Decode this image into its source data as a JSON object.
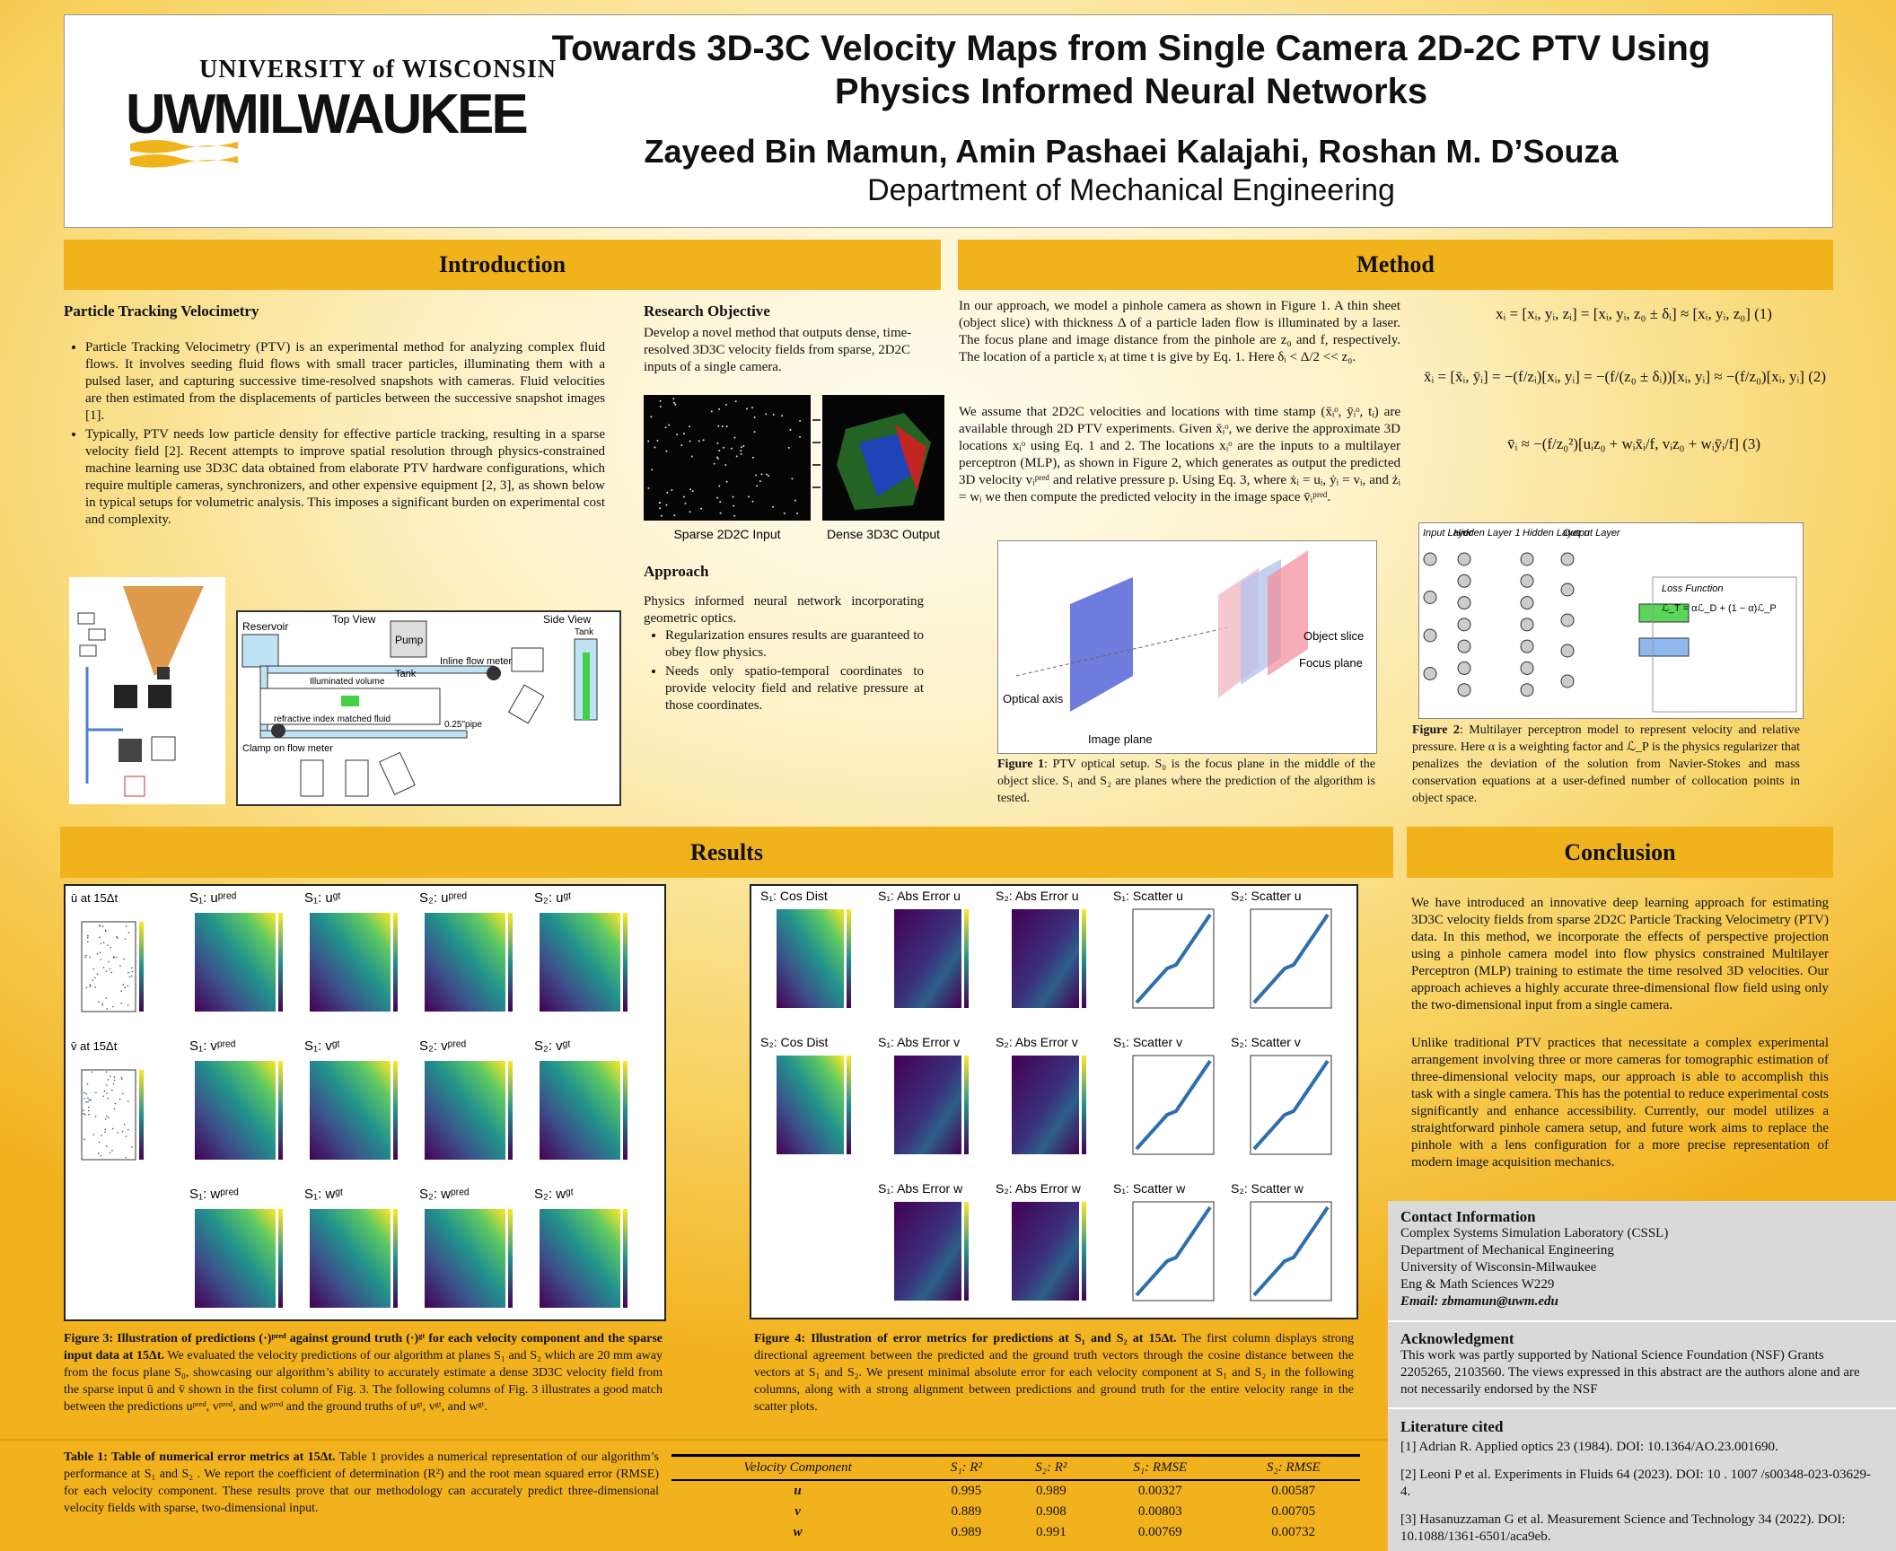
{
  "header": {
    "university": "UNIVERSITY of WISCONSIN",
    "logo": "UWMILWAUKEE",
    "title": "Towards 3D-3C Velocity Maps from Single Camera 2D-2C PTV Using Physics Informed Neural Networks",
    "authors": "Zayeed Bin Mamun, Amin Pashaei Kalajahi, Roshan M. D’Souza",
    "department": "Department of Mechanical Engineering"
  },
  "introduction": {
    "heading": "Introduction",
    "subheading": "Particle Tracking Velocimetry",
    "bullets": [
      "Particle Tracking Velocimetry (PTV) is an experimental method for analyzing complex fluid flows. It involves seeding fluid flows with small tracer particles, illuminating them with a pulsed laser, and capturing successive time-resolved snapshots with cameras. Fluid velocities are then estimated from the displacements of particles between the successive snapshot images [1].",
      "Typically, PTV needs low particle density for effective particle tracking, resulting in a sparse velocity field [2]. Recent attempts to improve spatial resolution through physics-constrained machine learning use 3D3C data obtained from elaborate PTV hardware configurations, which require multiple cameras, synchronizers, and other expensive equipment [2, 3], as shown below in typical setups for volumetric analysis. This imposes a significant burden on experimental cost and complexity."
    ],
    "objective_heading": "Research Objective",
    "objective": "Develop a novel method that outputs dense, time-resolved 3D3C velocity fields from sparse, 2D2C inputs of a single camera.",
    "figure_labels": [
      "Sparse 2D2C Input",
      "Dense 3D3C Output"
    ],
    "approach_heading": "Approach",
    "approach": "Physics informed neural network incorporating geometric optics.",
    "approach_bullets": [
      "Regularization ensures results are guaranteed to obey flow physics.",
      "Needs only spatio-temporal coordinates to provide velocity field and relative pressure at those coordinates."
    ],
    "setup_labels": [
      "Reservoir",
      "Top View",
      "Side View",
      "Pump",
      "Tank",
      "Inline flow meter",
      "Illuminated volume",
      "Clamp on flow meter",
      "refractive index matched fluid",
      "0.25\"pipe",
      "Tank"
    ]
  },
  "method": {
    "heading": "Method",
    "paragraphs": [
      "In our approach, we model a pinhole camera as shown in Figure 1. A thin sheet (object slice) with thickness Δ of a particle laden flow is illuminated by a laser. The focus plane and image distance from the pinhole are z₀ and f, respectively. The location of a particle xᵢ at time t is give by Eq. 1. Here δᵢ < Δ/2 << z₀.",
      "We assume that 2D2C velocities and locations with time stamp (x̄ᵢᵒ, ȳᵢᵒ, tᵢ) are available through 2D PTV experiments. Given x̄ᵢᵒ, we derive the approximate 3D locations xᵢᵒ using Eq. 1 and 2. The locations xᵢᵒ are the inputs to a multilayer perceptron (MLP), as shown in Figure 2, which generates as output the predicted 3D velocity vᵢᵖʳᵉᵈ and relative pressure p. Using Eq. 3, where ẋᵢ = uᵢ, ẏᵢ = vᵢ, and żᵢ = wᵢ we then compute the predicted velocity in the image space v̄ᵢᵖʳᵉᵈ."
    ],
    "equations": [
      "xᵢ = [xᵢ, yᵢ, zᵢ] = [xᵢ, yᵢ, z₀ ± δᵢ] ≈ [xᵢ, yᵢ, z₀] (1)",
      "x̄ᵢ = [x̄ᵢ, ȳᵢ] = −(f/zᵢ)[xᵢ, yᵢ] = −(f/(z₀ ± δᵢ))[xᵢ, yᵢ] ≈ −(f/z₀)[xᵢ, yᵢ] (2)",
      "v̄ᵢ ≈ −(f/z₀²)[uᵢz₀ + wᵢx̄ᵢ/f, vᵢz₀ + wᵢȳᵢ/f] (3)"
    ],
    "figure1_labels": [
      "Optical axis",
      "Image plane",
      "Object slice",
      "Focus plane"
    ],
    "figure1_caption_label": "Figure 1",
    "figure1_caption": ": PTV optical setup. S₀ is the focus plane in the middle of the object slice. S₁ and S₂ are planes where the prediction of the algorithm is tested.",
    "figure2_labels": [
      "Input Layer",
      "Hidden Layer 1",
      "Hidden Layer n",
      "Output Layer",
      "Loss Function",
      "ℒ_T = αℒ_D + (1 − α)ℒ_P"
    ],
    "figure2_caption_label": "Figure 2",
    "figure2_caption": ": Multilayer perceptron model to represent velocity and relative pressure. Here α is a weighting factor and ℒ_P is the physics regularizer that penalizes the deviation of the solution from Navier-Stokes and mass conservation equations at a user-defined number of collocation points in object space."
  },
  "results": {
    "heading": "Results",
    "figure3_rows": [
      {
        "input_label": "ū at 15Δt",
        "titles": [
          "S₁: uᵖʳᵉᵈ",
          "S₁: uᵍᵗ",
          "S₂: uᵖʳᵉᵈ",
          "S₂: uᵍᵗ"
        ]
      },
      {
        "input_label": "v̄ at 15Δt",
        "titles": [
          "S₁: vᵖʳᵉᵈ",
          "S₁: vᵍᵗ",
          "S₂: vᵖʳᵉᵈ",
          "S₂: vᵍᵗ"
        ]
      },
      {
        "titles": [
          "S₁: wᵖʳᵉᵈ",
          "S₁: wᵍᵗ",
          "S₂: wᵖʳᵉᵈ",
          "S₂: wᵍᵗ"
        ]
      }
    ],
    "figure4_rows": [
      {
        "titles": [
          "S₁: Cos Dist",
          "S₁: Abs Error u",
          "S₂: Abs Error u",
          "S₁: Scatter u",
          "S₂: Scatter u"
        ]
      },
      {
        "titles": [
          "S₂: Cos Dist",
          "S₁: Abs Error v",
          "S₂: Abs Error v",
          "S₁: Scatter v",
          "S₂: Scatter v"
        ]
      },
      {
        "titles": [
          "S₁: Abs Error w",
          "S₂: Abs Error w",
          "S₁: Scatter w",
          "S₂: Scatter w"
        ]
      }
    ],
    "figure3_caption_label": "Figure 3: Illustration of predictions (·)ᵖʳᵉᵈ against ground truth (·)ᵍᵗ for each velocity component and the sparse input data at 15Δt.",
    "figure3_caption": "We evaluated the velocity predictions of our algorithm at planes S₁ and S₂ which are 20 mm away from the focus plane S₀, showcasing our algorithm’s ability to accurately estimate a dense 3D3C velocity field from the sparse input ū and v̄ shown in the first column of Fig. 3. The following columns of Fig. 3 illustrates a good match between the predictions uᵖʳᵉᵈ, vᵖʳᵉᵈ, and wᵖʳᵉᵈ and the ground truths of uᵍᵗ, vᵍᵗ, and wᵍᵗ.",
    "figure4_caption_label": "Figure 4: Illustration of error metrics for predictions at S₁ and S₂ at 15Δt.",
    "figure4_caption": "The first column displays strong directional agreement between the predicted and the ground truth vectors through the cosine distance between the vectors at S₁ and S₂. We present minimal absolute error for each velocity component at S₁ and S₂ in the following columns, along with a strong alignment between predictions and ground truth for the entire velocity range in the scatter plots."
  },
  "table": {
    "caption_label": "Table 1: Table of numerical error metrics at 15Δt.",
    "caption": "Table 1 provides a numerical representation of our algorithm’s performance at S₁ and S₂ . We report the coefficient of determination (R²) and the root mean squared error (RMSE) for each velocity component. These results prove that our methodology can accurately predict three-dimensional velocity fields with sparse, two-dimensional input.",
    "header": [
      "Velocity Component",
      "S₁: R²",
      "S₂: R²",
      "S₁: RMSE",
      "S₂: RMSE"
    ],
    "rows": [
      [
        "u",
        "0.995",
        "0.989",
        "0.00327",
        "0.00587"
      ],
      [
        "v",
        "0.889",
        "0.908",
        "0.00803",
        "0.00705"
      ],
      [
        "w",
        "0.989",
        "0.991",
        "0.00769",
        "0.00732"
      ]
    ]
  },
  "conclusion": {
    "heading": "Conclusion",
    "paragraphs": [
      "We have introduced an innovative deep learning approach for estimating 3D3C velocity fields from sparse 2D2C Particle Tracking Velocimetry (PTV) data. In this method, we incorporate the effects of perspective projection using a pinhole camera model into flow physics constrained Multilayer Perceptron (MLP) training to estimate the time resolved 3D velocities. Our approach achieves a highly accurate three-dimensional flow field using only the two-dimensional input from a single camera.",
      "Unlike traditional PTV practices that necessitate a complex experimental arrangement involving three or more cameras for tomographic estimation of three-dimensional velocity maps, our approach is able to accomplish this task with a single camera. This has the potential to reduce experimental costs significantly and enhance accessibility. Currently, our model utilizes a straightforward pinhole camera setup, and future work aims to replace the pinhole with a lens configuration for a more precise representation of modern image acquisition mechanics."
    ]
  },
  "contact": {
    "heading": "Contact Information",
    "lines": [
      "Complex Systems Simulation Laboratory (CSSL)",
      "Department of Mechanical Engineering",
      "University of Wisconsin-Milwaukee",
      "Eng & Math Sciences W229"
    ],
    "email": "Email: zbmamun@uwm.edu"
  },
  "acknowledgment": {
    "heading": "Acknowledgment",
    "text": "This work was partly supported by National Science Foundation (NSF) Grants 2205265, 2103560. The views expressed in this abstract are the authors alone and are not necessarily endorsed by the NSF"
  },
  "literature": {
    "heading": "Literature cited",
    "references": [
      "[1] Adrian R. Applied optics 23 (1984). DOI: 10.1364/AO.23.001690.",
      "[2] Leoni P et al. Experiments in Fluids 64 (2023). DOI: 10 . 1007 /s00348-023-03629-4.",
      "[3] Hasanuzzaman G et al. Measurement Science and Technology 34 (2022). DOI: 10.1088/1361-6501/aca9eb."
    ]
  }
}
